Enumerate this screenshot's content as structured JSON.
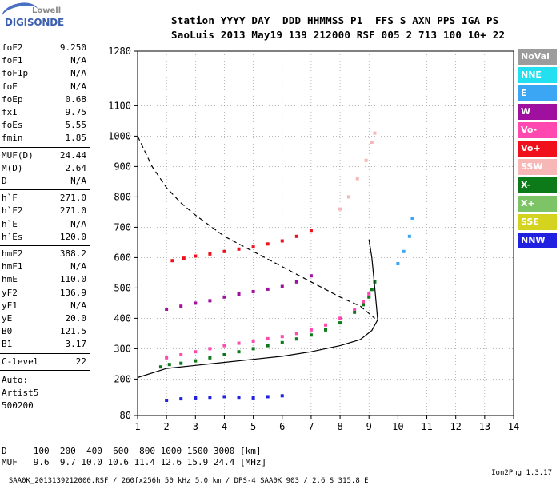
{
  "logo": {
    "line1": "Lowell",
    "line2": "DIGISONDE"
  },
  "header": {
    "line1": "Station YYYY DAY  DDD HHMMSS P1  FFS S AXN PPS IGA PS",
    "line2": "SaoLuis 2013 May19 139 212000 RSF 005 2 713 100 10+ 22"
  },
  "params_a": [
    {
      "k": "foF2",
      "v": "9.250"
    },
    {
      "k": "foF1",
      "v": "N/A"
    },
    {
      "k": "foF1p",
      "v": "N/A"
    },
    {
      "k": "foE",
      "v": "N/A"
    },
    {
      "k": "foEp",
      "v": "0.68"
    },
    {
      "k": "fxI",
      "v": "9.75"
    },
    {
      "k": "foEs",
      "v": "5.55"
    },
    {
      "k": "fmin",
      "v": "1.85"
    }
  ],
  "params_b": [
    {
      "k": "MUF(D)",
      "v": "24.44"
    },
    {
      "k": "M(D)",
      "v": "2.64"
    },
    {
      "k": "D",
      "v": "N/A"
    }
  ],
  "params_c": [
    {
      "k": "h`F",
      "v": "271.0"
    },
    {
      "k": "h`F2",
      "v": "271.0"
    },
    {
      "k": "h`E",
      "v": "N/A"
    },
    {
      "k": "h`Es",
      "v": "120.0"
    }
  ],
  "params_d": [
    {
      "k": "hmF2",
      "v": "388.2"
    },
    {
      "k": "hmF1",
      "v": "N/A"
    },
    {
      "k": "hmE",
      "v": "110.0"
    },
    {
      "k": "yF2",
      "v": "136.9"
    },
    {
      "k": "yF1",
      "v": "N/A"
    },
    {
      "k": "yE",
      "v": "20.0"
    },
    {
      "k": "B0",
      "v": "121.5"
    },
    {
      "k": "B1",
      "v": "3.17"
    }
  ],
  "params_e": [
    {
      "k": "C-level",
      "v": "22"
    }
  ],
  "auto": [
    "Auto:",
    "Artist5",
    "500200"
  ],
  "legend": [
    {
      "label": "NoVal",
      "color": "#9c9c9c"
    },
    {
      "label": "NNE",
      "color": "#22e0f0"
    },
    {
      "label": "E",
      "color": "#3aa6f4"
    },
    {
      "label": "W",
      "color": "#a0109e"
    },
    {
      "label": "Vo-",
      "color": "#ff49b0"
    },
    {
      "label": "Vo+",
      "color": "#f0101c"
    },
    {
      "label": "SSW",
      "color": "#f7b7b7"
    },
    {
      "label": "X-",
      "color": "#0c7a18"
    },
    {
      "label": "X+",
      "color": "#7cc466"
    },
    {
      "label": "SSE",
      "color": "#d4d420"
    },
    {
      "label": "NNW",
      "color": "#2020e0"
    }
  ],
  "footer": {
    "d_line": "D     100  200  400  600  800 1000 1500 3000 [km]",
    "muf_line": "MUF   9.6  9.7 10.0 10.6 11.4 12.6 15.9 24.4 [MHz]",
    "file_line": "SAA0K_2013139212000.RSF / 260fx256h 50 kHz 5.0 km / DPS-4 SAA0K 903 / 2.6 S 315.8 E",
    "version": "Ion2Png 1.3.17"
  },
  "chart_data": {
    "type": "scatter",
    "title": "",
    "xlabel": "",
    "ylabel": "",
    "xlim": [
      1,
      14
    ],
    "ylim": [
      80,
      1280
    ],
    "x_ticks": [
      1,
      2,
      3,
      4,
      5,
      6,
      7,
      8,
      9,
      10,
      11,
      12,
      13,
      14
    ],
    "y_ticks": [
      80,
      200,
      300,
      400,
      500,
      600,
      700,
      800,
      900,
      1000,
      1100,
      1280
    ],
    "grid": "dotted",
    "series": [
      {
        "name": "X-",
        "x": [
          1.8,
          2.1,
          2.5,
          3.0,
          3.5,
          4.0,
          4.5,
          5.0,
          5.5,
          6.0,
          6.5,
          7.0,
          7.5,
          8.0,
          8.5,
          8.8,
          9.0,
          9.1,
          9.2
        ],
        "y": [
          240,
          248,
          252,
          260,
          270,
          280,
          290,
          300,
          310,
          320,
          332,
          345,
          362,
          385,
          420,
          445,
          470,
          495,
          520
        ]
      },
      {
        "name": "Vo-",
        "x": [
          2.0,
          2.5,
          3.0,
          3.5,
          4.0,
          4.5,
          5.0,
          5.5,
          6.0,
          6.5,
          7.0,
          7.5,
          8.0,
          8.5,
          8.8,
          9.0
        ],
        "y": [
          270,
          280,
          290,
          300,
          310,
          318,
          325,
          333,
          340,
          350,
          362,
          378,
          400,
          430,
          455,
          480
        ]
      },
      {
        "name": "W",
        "x": [
          2.0,
          2.5,
          3.0,
          3.5,
          4.0,
          4.5,
          5.0,
          5.5,
          6.0,
          6.5,
          7.0
        ],
        "y": [
          430,
          440,
          450,
          458,
          470,
          480,
          488,
          496,
          505,
          520,
          540
        ]
      },
      {
        "name": "Vo+",
        "x": [
          2.2,
          2.6,
          3.0,
          3.5,
          4.0,
          4.5,
          5.0,
          5.5,
          6.0,
          6.5,
          7.0
        ],
        "y": [
          590,
          598,
          605,
          612,
          620,
          628,
          635,
          645,
          655,
          670,
          690
        ]
      },
      {
        "name": "NNW",
        "x": [
          2.0,
          2.5,
          3.0,
          3.5,
          4.0,
          4.5,
          5.0,
          5.5,
          6.0
        ],
        "y": [
          130,
          135,
          138,
          140,
          142,
          140,
          138,
          142,
          145
        ]
      },
      {
        "name": "SSW",
        "x": [
          8.0,
          8.3,
          8.6,
          8.9,
          9.1,
          9.2
        ],
        "y": [
          760,
          800,
          860,
          920,
          980,
          1010
        ]
      },
      {
        "name": "E",
        "x": [
          10.0,
          10.2,
          10.4,
          10.5
        ],
        "y": [
          580,
          620,
          670,
          730
        ]
      }
    ],
    "profile_curves": [
      {
        "name": "solid",
        "x": [
          1.0,
          2.0,
          3.0,
          4.0,
          5.0,
          6.0,
          7.0,
          8.0,
          8.7,
          9.1,
          9.3,
          9.2,
          9.1,
          9.0
        ],
        "y": [
          205,
          235,
          245,
          255,
          265,
          275,
          290,
          310,
          330,
          360,
          395,
          500,
          600,
          660
        ]
      },
      {
        "name": "dashed",
        "x": [
          1.0,
          1.5,
          2.0,
          2.5,
          3.0,
          3.5,
          4.0,
          5.0,
          6.0,
          7.0,
          8.0,
          8.7,
          9.2
        ],
        "y": [
          1000,
          900,
          830,
          780,
          740,
          705,
          670,
          620,
          570,
          520,
          470,
          440,
          400
        ]
      }
    ]
  }
}
